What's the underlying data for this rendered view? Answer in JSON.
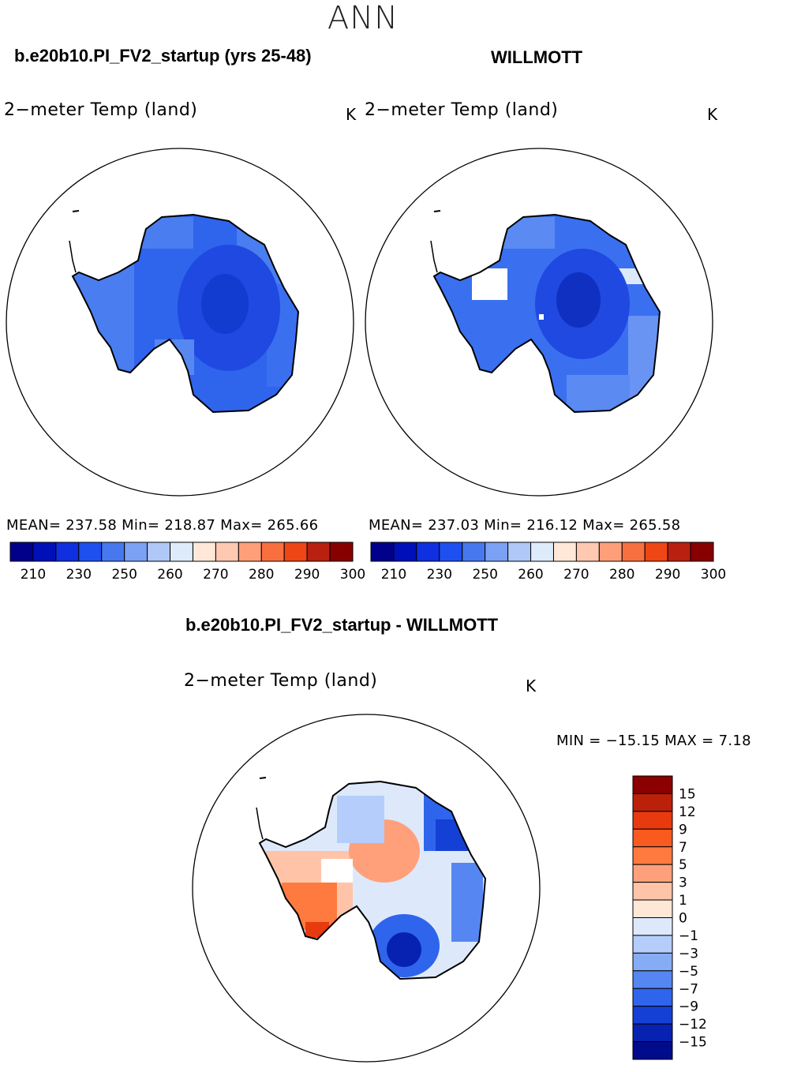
{
  "season": "ANN",
  "panels": [
    {
      "title": "b.e20b10.PI_FV2_startup (yrs 25-48)",
      "variable": "2−meter Temp (land)",
      "units": "K",
      "stats": "MEAN= 237.58   Min= 218.87   Max= 265.66"
    },
    {
      "title": "WILLMOTT",
      "variable": "2−meter Temp (land)",
      "units": "K",
      "stats": "MEAN= 237.03   Min= 216.12   Max= 265.58"
    },
    {
      "title": "b.e20b10.PI_FV2_startup - WILLMOTT",
      "variable": "2−meter Temp (land)",
      "units": "K",
      "stats": "MIN = −15.15  MAX =    7.18"
    }
  ],
  "chart_data": [
    {
      "type": "heatmap",
      "projection": "south-polar-stereographic",
      "title": "b.e20b10.PI_FV2_startup (yrs 25-48)",
      "variable": "2-meter Temp (land)",
      "units": "K",
      "mean": 237.58,
      "min": 218.87,
      "max": 265.66,
      "colorbar": {
        "orientation": "horizontal",
        "tick_labels": [
          "210",
          "230",
          "250",
          "260",
          "270",
          "280",
          "290",
          "300"
        ],
        "colors": [
          "#00008b",
          "#0010b8",
          "#0f2fe0",
          "#1e50f0",
          "#4778f0",
          "#7ba1f5",
          "#afc8f8",
          "#deebfa",
          "#ffe8d8",
          "#ffc8b0",
          "#ff9f7a",
          "#f8703f",
          "#ee4615",
          "#ba2010",
          "#870000"
        ]
      }
    },
    {
      "type": "heatmap",
      "projection": "south-polar-stereographic",
      "title": "WILLMOTT",
      "variable": "2-meter Temp (land)",
      "units": "K",
      "mean": 237.03,
      "min": 216.12,
      "max": 265.58,
      "colorbar": {
        "orientation": "horizontal",
        "tick_labels": [
          "210",
          "230",
          "250",
          "260",
          "270",
          "280",
          "290",
          "300"
        ],
        "colors": [
          "#00008b",
          "#0010b8",
          "#0f2fe0",
          "#1e50f0",
          "#4778f0",
          "#7ba1f5",
          "#afc8f8",
          "#deebfa",
          "#ffe8d8",
          "#ffc8b0",
          "#ff9f7a",
          "#f8703f",
          "#ee4615",
          "#ba2010",
          "#870000"
        ]
      }
    },
    {
      "type": "heatmap",
      "projection": "south-polar-stereographic",
      "title": "b.e20b10.PI_FV2_startup - WILLMOTT",
      "variable": "2-meter Temp (land)",
      "units": "K",
      "min": -15.15,
      "max": 7.18,
      "colorbar": {
        "orientation": "vertical",
        "tick_labels": [
          "15",
          "12",
          "9",
          "7",
          "5",
          "3",
          "1",
          "0",
          "−1",
          "−3",
          "−5",
          "−7",
          "−9",
          "−12",
          "−15"
        ],
        "colors": [
          "#8b0000",
          "#bb2008",
          "#e83a0f",
          "#f85a20",
          "#ff7a3e",
          "#ffa07a",
          "#ffc4a8",
          "#ffe7d6",
          "#dde9fb",
          "#b5cdfa",
          "#86acf5",
          "#5586f2",
          "#2f64ec",
          "#1440d6",
          "#0722b0",
          "#000c8c"
        ]
      }
    }
  ]
}
